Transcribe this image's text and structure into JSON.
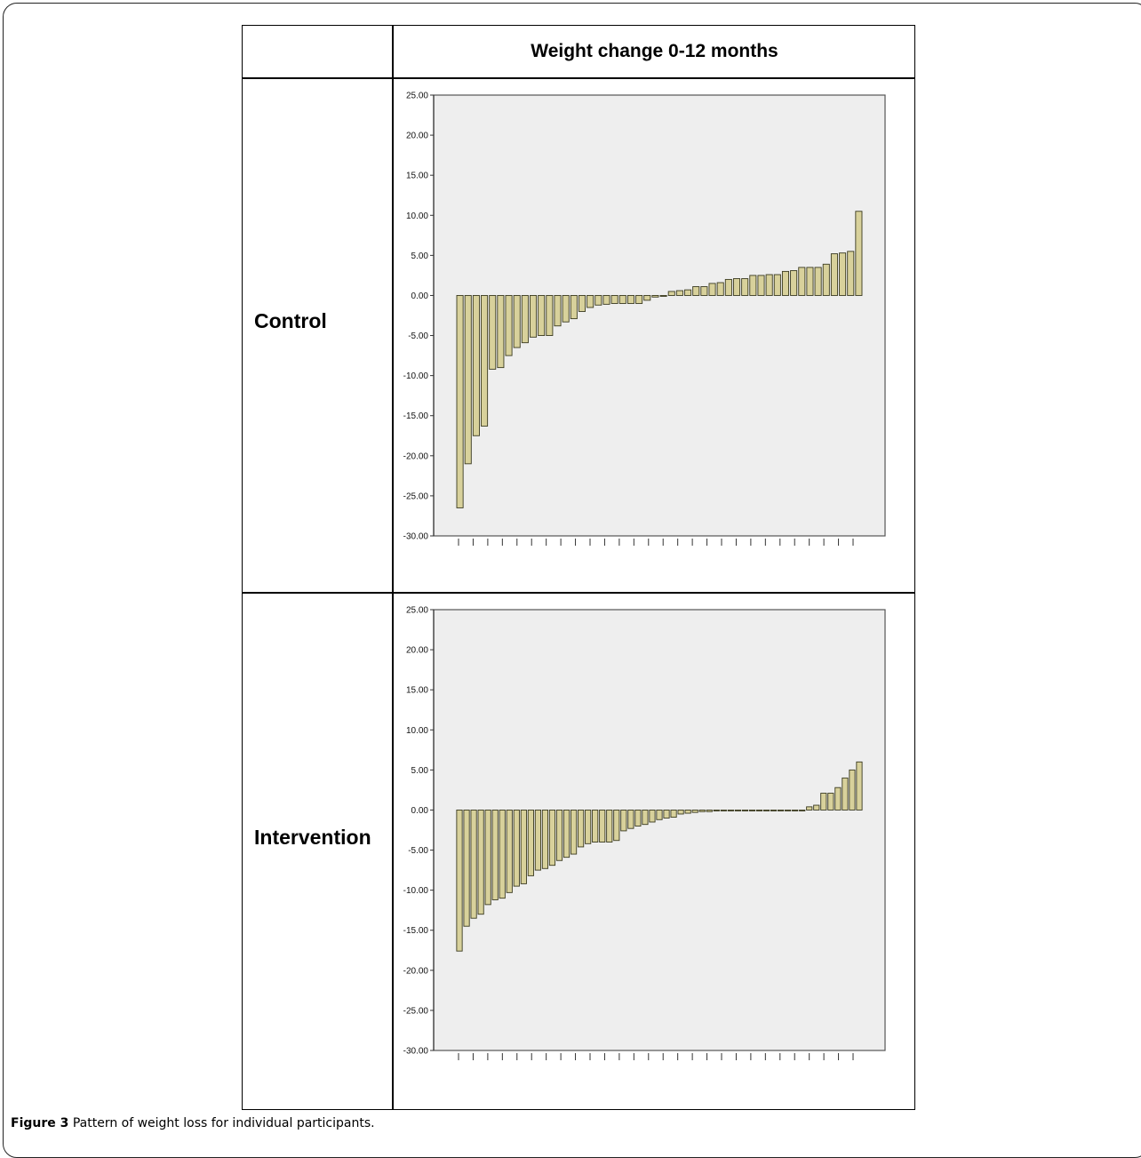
{
  "table": {
    "header": "Weight change 0-12 months",
    "rows": [
      {
        "label": "Control"
      },
      {
        "label": "Intervention"
      }
    ]
  },
  "caption": {
    "prefix": "Figure 3",
    "text": "Pattern of weight loss for individual participants."
  },
  "colors": {
    "bar_fill": "#d8d19b",
    "bar_stroke": "#3a3a20",
    "plot_bg": "#eeeeee"
  },
  "chart_data": [
    {
      "type": "bar",
      "panel": "Control",
      "ylim": [
        -30,
        25
      ],
      "ytick_labels": [
        "25.00",
        "20.00",
        "15.00",
        "10.00",
        "5.00",
        "0.00",
        "-5.00",
        "-10.00",
        "-15.00",
        "-20.00",
        "-25.00",
        "-30.00"
      ],
      "ytick_values": [
        25,
        20,
        15,
        10,
        5,
        0,
        -5,
        -10,
        -15,
        -20,
        -25,
        -30
      ],
      "values": [
        -26.5,
        -21.0,
        -17.5,
        -16.3,
        -9.2,
        -9.0,
        -7.5,
        -6.5,
        -5.9,
        -5.2,
        -5.0,
        -5.0,
        -3.8,
        -3.3,
        -2.9,
        -2.0,
        -1.5,
        -1.2,
        -1.1,
        -1.0,
        -1.0,
        -1.0,
        -1.0,
        -0.6,
        -0.2,
        -0.1,
        0.5,
        0.6,
        0.7,
        1.1,
        1.1,
        1.5,
        1.6,
        2.0,
        2.1,
        2.1,
        2.5,
        2.5,
        2.6,
        2.6,
        3.0,
        3.1,
        3.5,
        3.5,
        3.5,
        3.9,
        5.2,
        5.3,
        5.5,
        10.5
      ],
      "x_ticks": 28
    },
    {
      "type": "bar",
      "panel": "Intervention",
      "ylim": [
        -30,
        25
      ],
      "ytick_labels": [
        "25.00",
        "20.00",
        "15.00",
        "10.00",
        "5.00",
        "0.00",
        "-5.00",
        "-10.00",
        "-15.00",
        "-20.00",
        "-25.00",
        "-30.00"
      ],
      "ytick_values": [
        25,
        20,
        15,
        10,
        5,
        0,
        -5,
        -10,
        -15,
        -20,
        -25,
        -30
      ],
      "values": [
        -17.6,
        -14.5,
        -13.5,
        -13.0,
        -11.8,
        -11.2,
        -11.0,
        -10.3,
        -9.5,
        -9.2,
        -8.2,
        -7.5,
        -7.3,
        -6.9,
        -6.3,
        -5.9,
        -5.5,
        -4.6,
        -4.2,
        -4.0,
        -4.0,
        -4.0,
        -3.8,
        -2.6,
        -2.3,
        -2.0,
        -1.8,
        -1.5,
        -1.2,
        -1.0,
        -0.9,
        -0.5,
        -0.4,
        -0.3,
        -0.2,
        -0.2,
        -0.1,
        -0.1,
        -0.1,
        -0.1,
        -0.1,
        -0.1,
        -0.1,
        -0.1,
        -0.1,
        -0.1,
        -0.1,
        -0.1,
        -0.1,
        0.4,
        0.6,
        2.1,
        2.1,
        2.8,
        4.0,
        5.0,
        6.0
      ],
      "x_ticks": 28
    }
  ]
}
